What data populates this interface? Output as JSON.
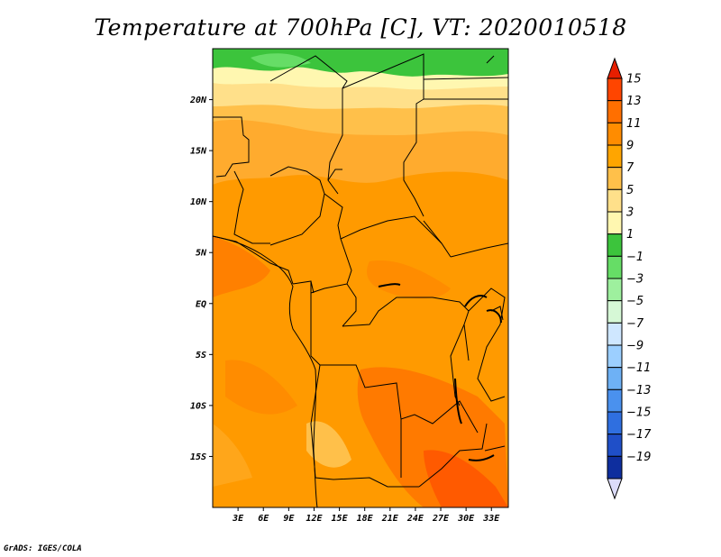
{
  "title": "Temperature at 700hPa [C], VT: 2020010518",
  "footer": "GrADS: IGES/COLA",
  "map": {
    "lon_labels": [
      "3E",
      "6E",
      "9E",
      "12E",
      "15E",
      "18E",
      "21E",
      "24E",
      "27E",
      "30E",
      "33E"
    ],
    "lon_values": [
      3,
      6,
      9,
      12,
      15,
      18,
      21,
      24,
      27,
      30,
      33
    ],
    "lat_labels": [
      "20N",
      "15N",
      "10N",
      "5N",
      "EQ",
      "5S",
      "10S",
      "15S"
    ],
    "lat_values": [
      20,
      15,
      10,
      5,
      0,
      -5,
      -10,
      -15
    ],
    "lon_range": [
      0,
      35
    ],
    "lat_range": [
      -20,
      25
    ]
  },
  "colorbar": {
    "labels": [
      "15",
      "13",
      "11",
      "9",
      "7",
      "5",
      "3",
      "1",
      "−1",
      "−3",
      "−5",
      "−7",
      "−9",
      "−11",
      "−13",
      "−15",
      "−17",
      "−19"
    ],
    "colors_top_to_bottom": [
      "#ff4500",
      "#ff6f00",
      "#ff8c00",
      "#ffa500",
      "#ffc04a",
      "#ffe08a",
      "#fff7b0",
      "#3cc43c",
      "#66dd66",
      "#9ef09e",
      "#d6f8d6",
      "#cfe7ff",
      "#9ccfff",
      "#6eb1f5",
      "#4a91ee",
      "#2f6fe0",
      "#1f4fc8",
      "#0e2e9e",
      "#00084f"
    ],
    "arrow_top_color": "#e61e00",
    "arrow_bottom_color": "#dcdcfa"
  }
}
